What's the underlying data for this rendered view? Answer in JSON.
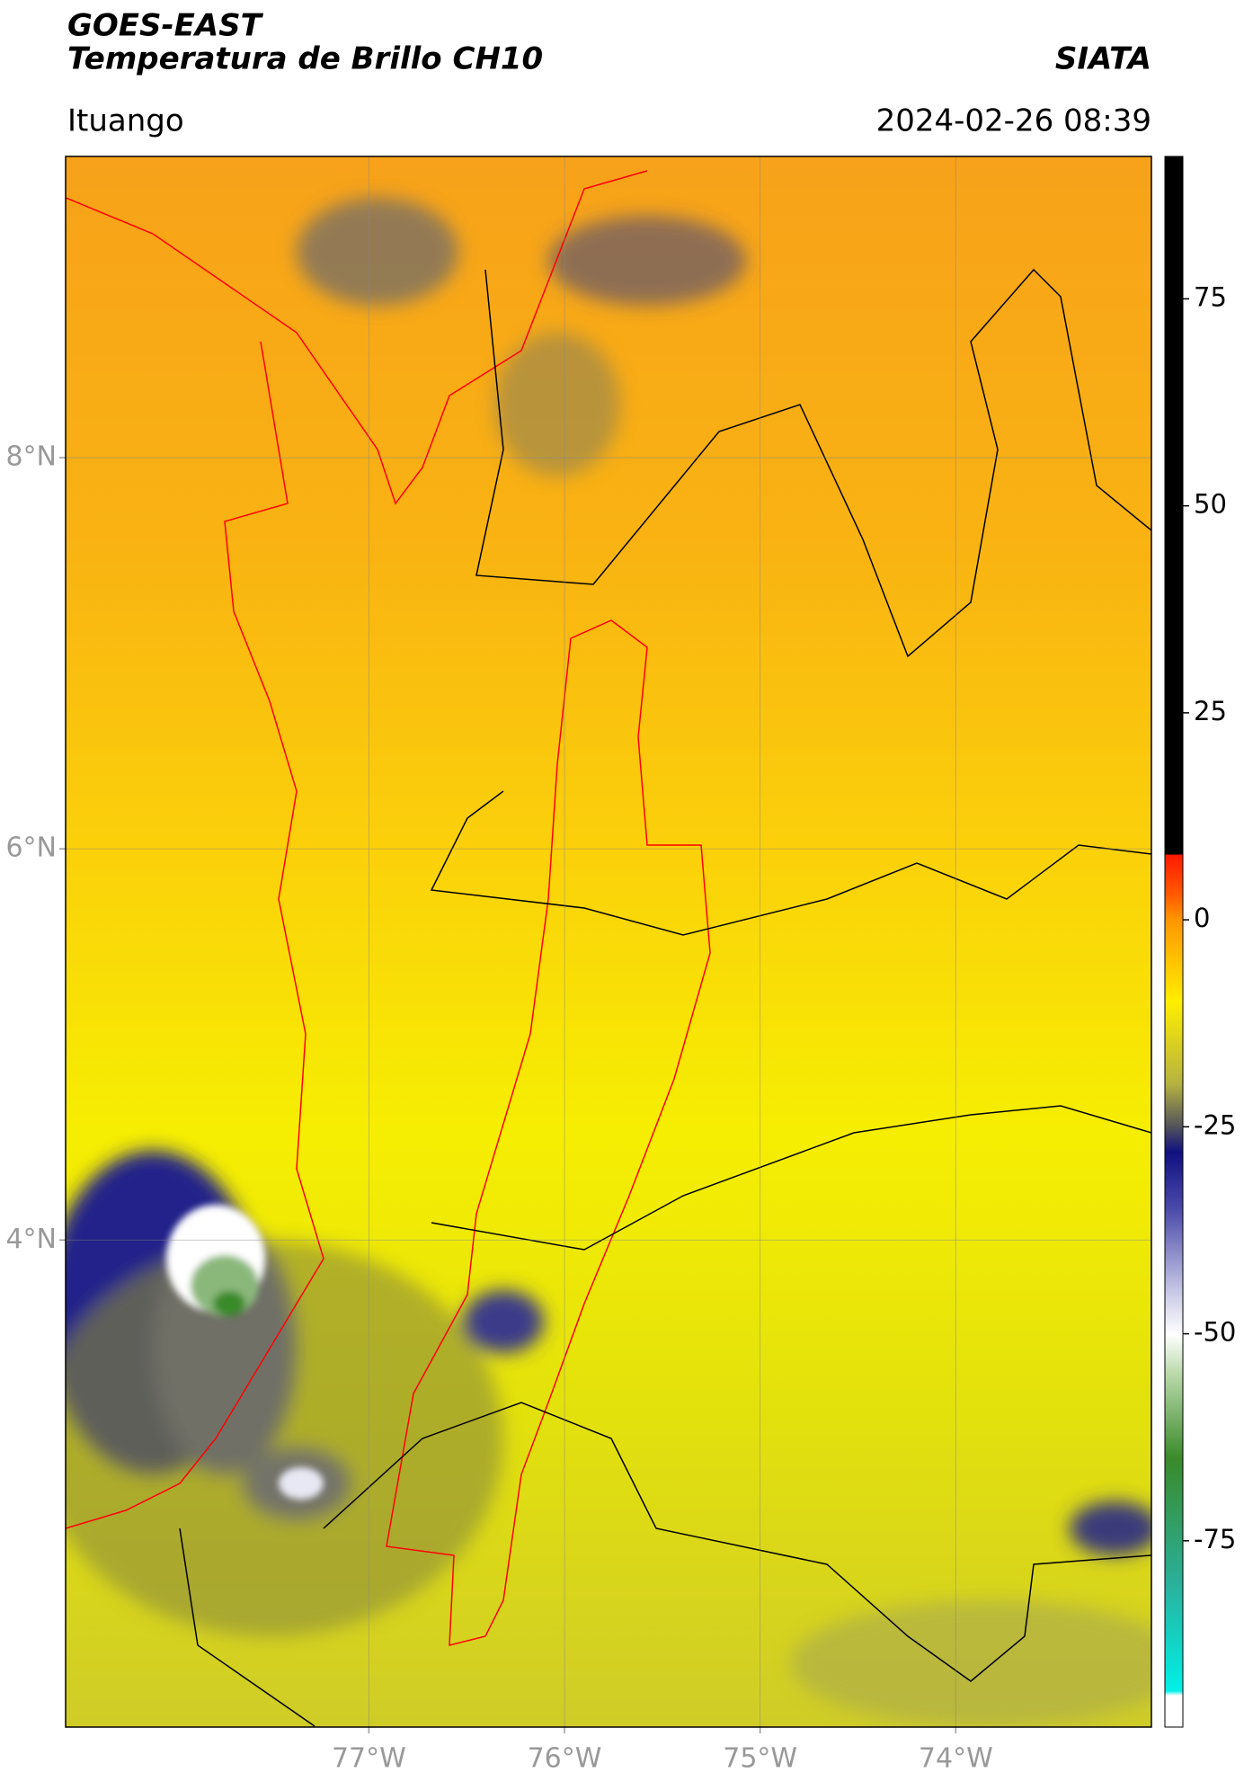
{
  "header": {
    "title": "GOES-EAST",
    "subtitle": "Temperatura de Brillo CH10",
    "source": "SIATA",
    "location": "Ituango",
    "timestamp": "2024-02-26 08:39"
  },
  "map": {
    "xlim": [
      -78.55,
      -73.0
    ],
    "ylim": [
      1.51,
      9.54
    ],
    "xticks": [
      {
        "value": -77,
        "label": "77°W"
      },
      {
        "value": -76,
        "label": "76°W"
      },
      {
        "value": -75,
        "label": "75°W"
      },
      {
        "value": -74,
        "label": "74°W"
      }
    ],
    "yticks": [
      {
        "value": 4,
        "label": "4°N"
      },
      {
        "value": 6,
        "label": "6°N"
      },
      {
        "value": 8,
        "label": "8°N"
      }
    ]
  },
  "colorbar": {
    "lim": [
      -97.5,
      92.2
    ],
    "ticks": [
      -75,
      -50,
      -25,
      0,
      25,
      50,
      75
    ]
  }
}
